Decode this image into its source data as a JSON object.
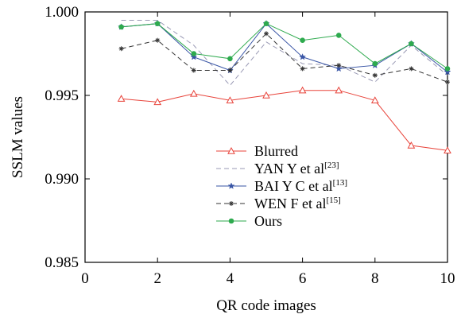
{
  "chart_data": {
    "type": "line",
    "xlabel": "QR code images",
    "ylabel": "SSLM values",
    "xlim": [
      0,
      10
    ],
    "ylim": [
      0.985,
      1.0
    ],
    "x_ticks": [
      "0",
      "2",
      "4",
      "6",
      "8",
      "10"
    ],
    "y_ticks": [
      "0.985",
      "0.990",
      "0.995",
      "1.000"
    ],
    "grid": false,
    "legend_position": "center",
    "x": [
      1,
      2,
      3,
      4,
      5,
      6,
      7,
      8,
      9,
      10
    ],
    "series": [
      {
        "name": "Blurred",
        "ref": "",
        "color": "#e8433a",
        "dash": "solid",
        "marker": "triangle-open",
        "values": [
          0.9948,
          0.9946,
          0.9951,
          0.9947,
          0.995,
          0.9953,
          0.9953,
          0.9947,
          0.992,
          0.9917
        ]
      },
      {
        "name": "YAN Y et al",
        "ref": "[23]",
        "color": "#9a9ab5",
        "dash": "dashed",
        "marker": "none",
        "values": [
          0.9995,
          0.9995,
          0.998,
          0.9956,
          0.9982,
          0.9969,
          0.9968,
          0.9958,
          0.998,
          0.9962
        ]
      },
      {
        "name": "BAI Y C et al",
        "ref": "[13]",
        "color": "#3a56a6",
        "dash": "solid",
        "marker": "star",
        "values": [
          0.9991,
          0.9993,
          0.9973,
          0.9965,
          0.9993,
          0.9973,
          0.9966,
          0.9968,
          0.9981,
          0.9964
        ]
      },
      {
        "name": "WEN F et al",
        "ref": "[15]",
        "color": "#333333",
        "dash": "dashed",
        "marker": "asterisk",
        "values": [
          0.9978,
          0.9983,
          0.9965,
          0.9965,
          0.9987,
          0.9966,
          0.9968,
          0.9962,
          0.9966,
          0.9958
        ]
      },
      {
        "name": "Ours",
        "ref": "",
        "color": "#2eaa4e",
        "dash": "solid",
        "marker": "dot",
        "values": [
          0.9991,
          0.9993,
          0.9975,
          0.9972,
          0.9993,
          0.9983,
          0.9986,
          0.9969,
          0.9981,
          0.9966
        ]
      }
    ]
  }
}
